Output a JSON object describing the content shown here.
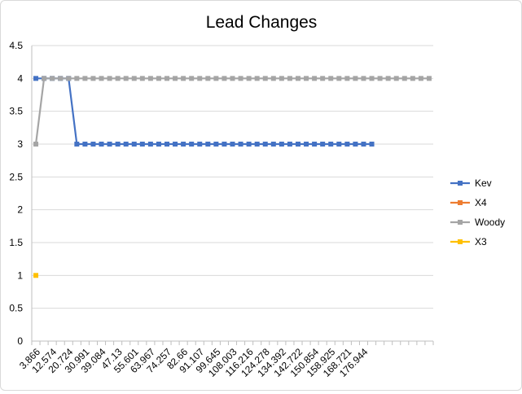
{
  "chart_data": {
    "type": "line",
    "title": "Lead Changes",
    "xlabel": "",
    "ylabel": "",
    "ylim": [
      0,
      4.5
    ],
    "yticks": [
      "0",
      "0.5",
      "1",
      "1.5",
      "2",
      "2.5",
      "3",
      "3.5",
      "4",
      "4.5"
    ],
    "grid": true,
    "legend_position": "right",
    "x_tick_labels": [
      "3.866",
      "12.574",
      "20.724",
      "30.991",
      "39.084",
      "47.13",
      "55.601",
      "63.967",
      "74.257",
      "82.66",
      "91.107",
      "99.645",
      "108.003",
      "116.216",
      "124.278",
      "134.392",
      "142.722",
      "150.854",
      "158.925",
      "168.721",
      "176.944"
    ],
    "point_count": 49,
    "series": [
      {
        "name": "Kev",
        "color": "#4472C4",
        "values": [
          4,
          4,
          4,
          4,
          4,
          3,
          3,
          3,
          3,
          3,
          3,
          3,
          3,
          3,
          3,
          3,
          3,
          3,
          3,
          3,
          3,
          3,
          3,
          3,
          3,
          3,
          3,
          3,
          3,
          3,
          3,
          3,
          3,
          3,
          3,
          3,
          3,
          3,
          3,
          3,
          3,
          3
        ]
      },
      {
        "name": "X4",
        "color": "#ED7D31",
        "values": []
      },
      {
        "name": "Woody",
        "color": "#A5A5A5",
        "values": [
          3,
          4,
          4,
          4,
          4,
          4,
          4,
          4,
          4,
          4,
          4,
          4,
          4,
          4,
          4,
          4,
          4,
          4,
          4,
          4,
          4,
          4,
          4,
          4,
          4,
          4,
          4,
          4,
          4,
          4,
          4,
          4,
          4,
          4,
          4,
          4,
          4,
          4,
          4,
          4,
          4,
          4,
          4,
          4,
          4,
          4,
          4,
          4,
          4
        ]
      },
      {
        "name": "X3",
        "color": "#FFC000",
        "values": [
          1
        ]
      }
    ]
  }
}
